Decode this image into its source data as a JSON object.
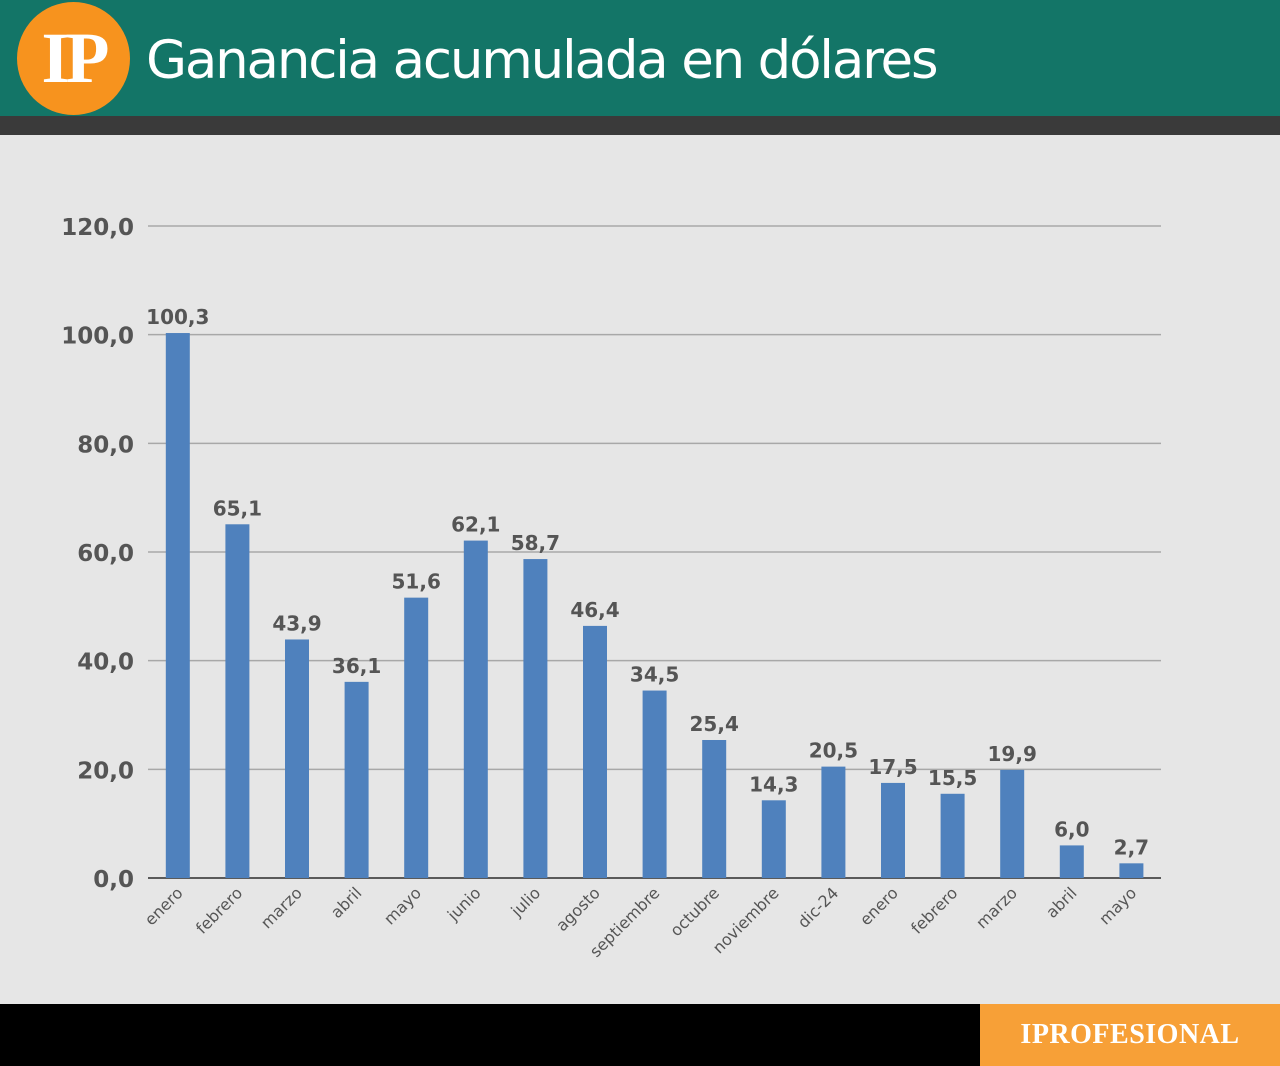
{
  "header": {
    "logo_text": "IP",
    "title": "Ganancia acumulada en dólares"
  },
  "footer": {
    "brand": "IPROFESIONAL"
  },
  "colors": {
    "header_band": "#137567",
    "logo": "#f7931e",
    "bar": "#4f81bd",
    "footer_brand": "#f7a037"
  },
  "chart_data": {
    "type": "bar",
    "title": "Ganancia acumulada en dólares",
    "xlabel": "",
    "ylabel": "",
    "ylim": [
      0,
      120
    ],
    "yticks": [
      0,
      20,
      40,
      60,
      80,
      100,
      120
    ],
    "ytick_labels": [
      "0,0",
      "20,0",
      "40,0",
      "60,0",
      "80,0",
      "100,0",
      "120,0"
    ],
    "grid": true,
    "categories": [
      "enero",
      "febrero",
      "marzo",
      "abril",
      "mayo",
      "junio",
      "julio",
      "agosto",
      "septiembre",
      "octubre",
      "noviembre",
      "dic-24",
      "enero",
      "febrero",
      "marzo",
      "abril",
      "mayo"
    ],
    "values": [
      100.3,
      65.1,
      43.9,
      36.1,
      51.6,
      62.1,
      58.7,
      46.4,
      34.5,
      25.4,
      14.3,
      20.5,
      17.5,
      15.5,
      19.9,
      6.0,
      2.7
    ],
    "value_labels": [
      "100,3",
      "65,1",
      "43,9",
      "36,1",
      "51,6",
      "62,1",
      "58,7",
      "46,4",
      "34,5",
      "25,4",
      "14,3",
      "20,5",
      "17,5",
      "15,5",
      "19,9",
      "6,0",
      "2,7"
    ]
  }
}
